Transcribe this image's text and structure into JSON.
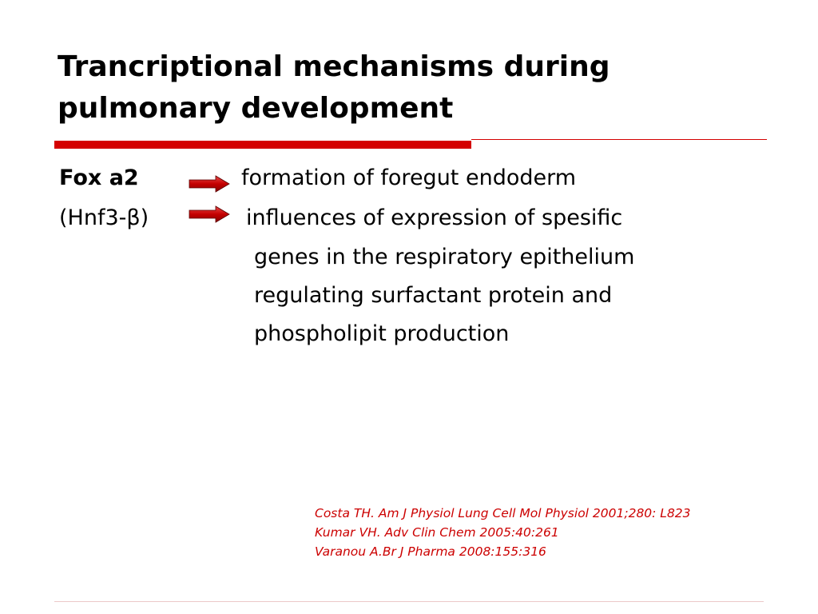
{
  "title": {
    "line1": "Trancriptional mechanisms during",
    "line2": "pulmonary development"
  },
  "rows": [
    {
      "left": "Fox a2",
      "right": "formation of foregut endoderm"
    },
    {
      "left": "(Hnf3-β)",
      "right": "influences of expression of spesific"
    }
  ],
  "continuation": [
    "genes in the respiratory epithelium",
    "regulating surfactant protein and",
    "phospholipit production"
  ],
  "references": [
    "Costa TH. Am J Physiol Lung Cell Mol Physiol 2001;280: L823",
    "Kumar VH. Adv Clin Chem 2005:40:261",
    "Varanou A.Br J Pharma 2008:155:316"
  ],
  "colors": {
    "accent": "#d40000",
    "reference_text": "#cc0000",
    "arrow_fill": "#cc0000"
  },
  "icons": [
    "right-arrow-icon"
  ]
}
